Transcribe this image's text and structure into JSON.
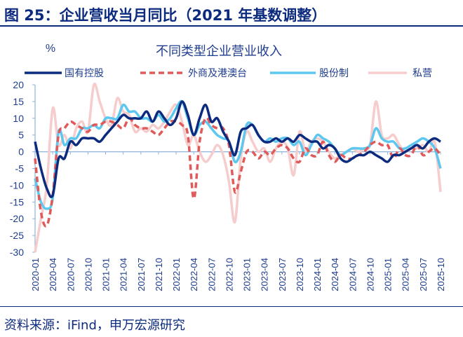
{
  "figure": {
    "title": "图 25：企业营收当月同比（2021 年基数调整）",
    "source": "资料来源：iFind，申万宏源研究"
  },
  "chart_data": {
    "type": "line",
    "title": "不同类型企业营业收入",
    "ylabel": "%",
    "xlabel": "",
    "ylim": [
      -30,
      20
    ],
    "yticks": [
      "20",
      "15",
      "10",
      "5",
      "0",
      "-5",
      "-10",
      "-15",
      "-20",
      "-25",
      "-30"
    ],
    "xticks": [
      "2020-01",
      "2020-04",
      "2020-07",
      "2020-10",
      "2021-01",
      "2021-04",
      "2021-07",
      "2021-10",
      "2022-01",
      "2022-04",
      "2022-07",
      "2022-10",
      "2023-01",
      "2023-04",
      "2023-07",
      "2023-10",
      "2024-01",
      "2024-04",
      "2024-07",
      "2024-10",
      "2025-01",
      "2025-04",
      "2025-07",
      "2025-10"
    ],
    "x_start": "2020-01",
    "x_end": "2025-10",
    "grid": false,
    "legend": "top",
    "series": [
      {
        "name": "国有控股",
        "color": "#0d2b7e",
        "style": "solid",
        "values": [
          3,
          -5,
          -11,
          -13,
          -2,
          -2,
          3,
          2,
          4,
          4,
          4,
          3,
          5,
          7,
          9,
          11,
          10,
          10,
          10,
          12,
          9,
          12,
          10,
          8,
          10,
          15,
          11,
          5,
          10,
          14,
          9,
          10,
          6,
          3,
          -1,
          6,
          7,
          8,
          5,
          3,
          3,
          4,
          3,
          4,
          3,
          5,
          4,
          3,
          3,
          1,
          2,
          1,
          -2,
          -3,
          -2,
          -1,
          -1,
          0,
          -1,
          -2,
          -3,
          -1,
          -1,
          0,
          1,
          2,
          1,
          3,
          4,
          3
        ]
      },
      {
        "name": "外商及港澳台",
        "color": "#e05a5a",
        "style": "dashed",
        "values": [
          -2,
          -18,
          -22,
          -13,
          5,
          7,
          9,
          8,
          7,
          6,
          8,
          8,
          9,
          9,
          8,
          7,
          10,
          8,
          7,
          7,
          6,
          5,
          7,
          9,
          9,
          8,
          5,
          -14,
          3,
          10,
          8,
          7,
          7,
          2,
          -12,
          -6,
          0,
          0,
          -2,
          0,
          -1,
          1,
          2,
          1,
          -2,
          -3,
          1,
          -1,
          -1,
          3,
          -1,
          -3,
          -1,
          -2,
          -2,
          -1,
          0,
          2,
          3,
          2,
          2,
          -2,
          1,
          -1,
          -1,
          2,
          -1,
          0,
          1,
          -1
        ]
      },
      {
        "name": "股份制",
        "color": "#5cc8f0",
        "style": "solid",
        "values": [
          -8,
          -15,
          -17,
          -14,
          6,
          2,
          4,
          4,
          7,
          7,
          8,
          7,
          10,
          10,
          10,
          14,
          12,
          12,
          10,
          10,
          9,
          11,
          9,
          10,
          13,
          15,
          10,
          5,
          8,
          9,
          7,
          5,
          4,
          3,
          -3,
          0,
          8,
          8,
          5,
          3,
          4,
          3,
          4,
          4,
          2,
          3,
          -1,
          2,
          5,
          4,
          3,
          1,
          -1,
          0,
          1,
          1,
          1,
          2,
          7,
          4,
          3,
          3,
          1,
          1,
          2,
          3,
          4,
          3,
          1,
          -5
        ]
      },
      {
        "name": "私营",
        "color": "#f6cccc",
        "style": "solid",
        "values": [
          -30,
          -20,
          -10,
          13,
          2,
          5,
          1,
          7,
          9,
          6,
          20,
          15,
          10,
          8,
          16,
          12,
          11,
          6,
          7,
          6,
          8,
          7,
          9,
          12,
          14,
          9,
          2,
          5,
          0,
          -3,
          -1,
          2,
          -1,
          -9,
          -21,
          -2,
          6,
          3,
          0,
          1,
          -3,
          1,
          3,
          1,
          -7,
          6,
          0,
          3,
          4,
          3,
          0,
          -2,
          -1,
          0,
          1,
          0,
          1,
          2,
          15,
          5,
          4,
          5,
          2,
          0,
          1,
          1,
          2,
          0,
          3,
          -12
        ]
      }
    ]
  }
}
